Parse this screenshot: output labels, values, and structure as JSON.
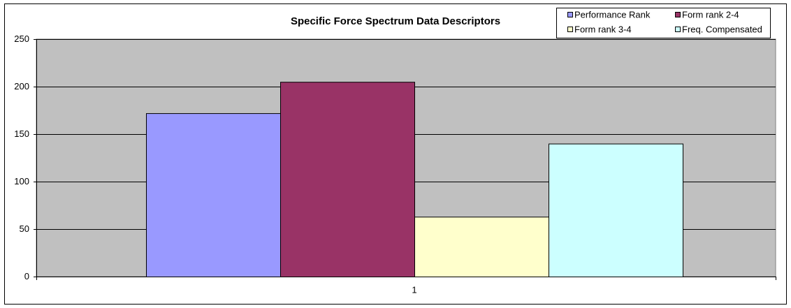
{
  "chart_data": {
    "type": "bar",
    "title": "Specific Force Spectrum Data Descriptors",
    "categories": [
      "1"
    ],
    "series": [
      {
        "name": "Performance Rank",
        "color": "#9999FF",
        "values": [
          172
        ]
      },
      {
        "name": "Form rank 2-4",
        "color": "#993366",
        "values": [
          205
        ]
      },
      {
        "name": "Form rank 3-4",
        "color": "#FFFFCC",
        "values": [
          63
        ]
      },
      {
        "name": "Freq. Compensated",
        "color": "#CCFFFF",
        "values": [
          140
        ]
      }
    ],
    "ylim": [
      0,
      250
    ],
    "yticks": [
      0,
      50,
      100,
      150,
      200,
      250
    ],
    "grid": true,
    "legend": "top-right",
    "plot_background": "#C0C0C0"
  }
}
